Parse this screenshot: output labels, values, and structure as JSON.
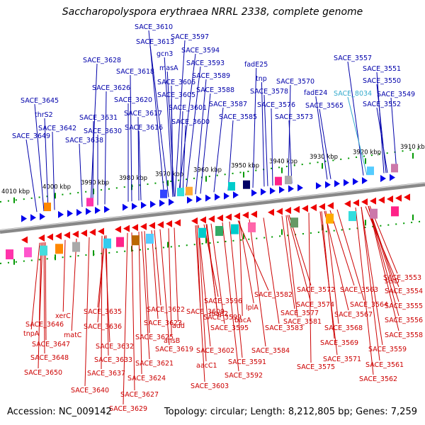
{
  "title": "Saccharopolyspora erythraea NRRL 2338, complete genome",
  "footer": {
    "accession": "Accession: NC_009142",
    "summary": "Topology: circular; Length: 8,212,805 bp; Genes: 7,259"
  },
  "colors": {
    "forward_label": "#0000aa",
    "reverse_label": "#cc0000",
    "highlight_label": "#33aacc",
    "forward_arrow": "#0000ee",
    "reverse_arrow": "#ee0000",
    "backbone": "#777777",
    "tick": "#009900"
  },
  "scale": {
    "ticks_kbp": [
      4010,
      4000,
      3990,
      3980,
      3970,
      3960,
      3950,
      3940,
      3930,
      3920,
      3910
    ],
    "tick_labels": [
      "4010 kbp",
      "4000 kbp",
      "3990 kbp",
      "3980 kbp",
      "3970 kbp",
      "3960 kbp",
      "3950 kbp",
      "3940 kbp",
      "3930 kbp",
      "3920 kbp",
      "3910 kbp"
    ]
  },
  "forward_labels": [
    "SACE_3610",
    "SACE_3597",
    "SACE_3613",
    "SACE_3594",
    "gcn3",
    "SACE_3628",
    "SACE_3593",
    "masA",
    "SACE_3618",
    "fadE25",
    "SACE_3557",
    "SACE_3551",
    "SACE_3589",
    "SACE_3606",
    "tnp",
    "SACE_3570",
    "SACE_3550",
    "SACE_3626",
    "SACE_3588",
    "SACE_3578",
    "fadE24",
    "SACE_8034",
    "SACE_3549",
    "SACE_3605",
    "SACE_3645",
    "SACE_3620",
    "SACE_3587",
    "SACE_3576",
    "SACE_3565",
    "SACE_3552",
    "SACE_3601",
    "thrS2",
    "SACE_3617",
    "SACE_3585",
    "SACE_3573",
    "SACE_3631",
    "SACE_3600",
    "SACE_3642",
    "SACE_3630",
    "SACE_3616",
    "SACE_3649",
    "SACE_3638"
  ],
  "reverse_labels": [
    "SACE_3553",
    "selD",
    "SACE_3554",
    "SACE_3582",
    "SACE_3572",
    "SACE_3563",
    "SACE_3596",
    "SACE_3574",
    "SACE_3564",
    "SACE_3555",
    "lplA",
    "SACE_3622",
    "SACE_3609",
    "SACE_3635",
    "map2",
    "SACE_3577",
    "SACE_3567",
    "xerC",
    "SACE_3599",
    "bacA",
    "SACE_3581",
    "SACE_3556",
    "SACE_3646",
    "SACE_3636",
    "SACE_3623",
    "add",
    "SACE_3595",
    "SACE_3583",
    "SACE_3568",
    "tnpA",
    "matC",
    "SACE_3625",
    "ansB",
    "SACE_3558",
    "SACE_3647",
    "SACE_3632",
    "SACE_3619",
    "SACE_3602",
    "SACE_3584",
    "SACE_3569",
    "SACE_3559",
    "SACE_3648",
    "SACE_3633",
    "SACE_3591",
    "SACE_3571",
    "SACE_3621",
    "aacC1",
    "SACE_3575",
    "SACE_3561",
    "SACE_3650",
    "SACE_3637",
    "SACE_3624",
    "SACE_3592",
    "SACE_3603",
    "SACE_3562",
    "SACE_3640",
    "SACE_3627",
    "SACE_3629"
  ]
}
